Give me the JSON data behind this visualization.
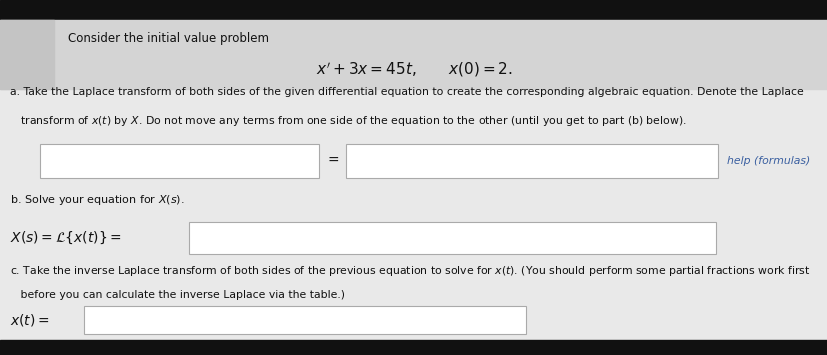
{
  "bg_color": "#e9e9e9",
  "top_bar_color": "#111111",
  "bottom_bar_color": "#111111",
  "header_bg": "#d4d4d4",
  "title_text": "Consider the initial value problem",
  "help_link": "help (formulas)",
  "help_color": "#3a5fa0",
  "box_color": "#ffffff",
  "box_border": "#aaaaaa",
  "text_color": "#111111",
  "part_a_line1": "a. Take the Laplace transform of both sides of the given differential equation to create the corresponding algebraic equation. Denote the Laplace",
  "part_a_line2": "   transform of $x(t)$ by $X$. Do not move any terms from one side of the equation to the other (until you get to part (b) below).",
  "part_b_label": "b. Solve your equation for $X(s)$.",
  "part_c_line1": "c. Take the inverse Laplace transform of both sides of the previous equation to solve for $x(t)$. (You should perform some partial fractions work first",
  "part_c_line2": "   before you can calculate the inverse Laplace via the table.)"
}
